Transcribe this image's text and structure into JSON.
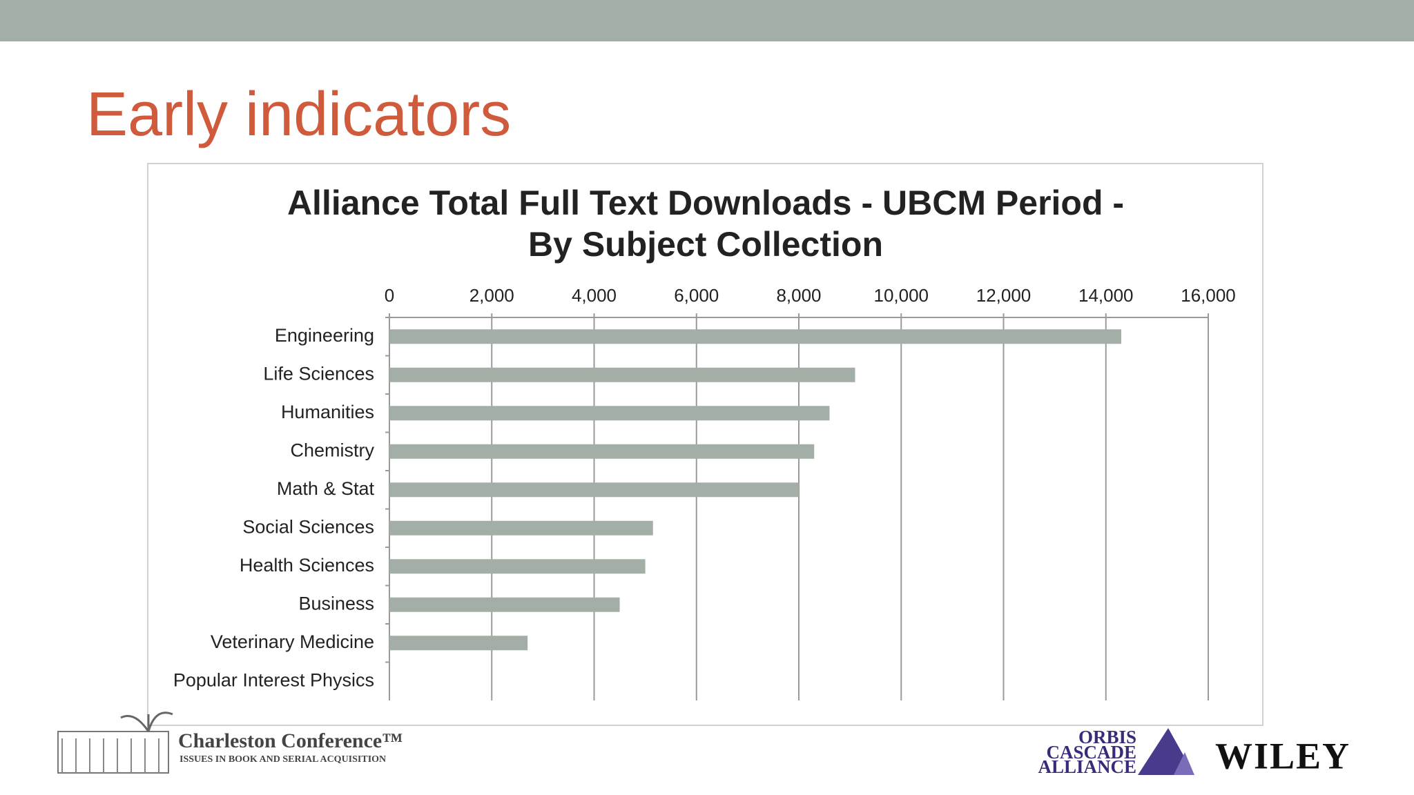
{
  "slide_title": "Early indicators",
  "chart_data": {
    "type": "bar",
    "orientation": "horizontal",
    "title": "Alliance Total Full Text Downloads - UBCM Period -",
    "subtitle": "By Subject Collection",
    "categories": [
      "Engineering",
      "Life Sciences",
      "Humanities",
      "Chemistry",
      "Math & Stat",
      "Social Sciences",
      "Health Sciences",
      "Business",
      "Veterinary Medicine",
      "Popular Interest Physics"
    ],
    "values": [
      14300,
      9100,
      8600,
      8300,
      8000,
      5150,
      5000,
      4500,
      2700,
      0
    ],
    "color": "#a3aea6",
    "xlim": [
      0,
      16000
    ],
    "xticks": [
      0,
      {
        "value": 2000,
        "label": "2,000"
      },
      {
        "value": 4000,
        "label": "4,000"
      },
      {
        "value": 6000,
        "label": "6,000"
      },
      {
        "value": 8000,
        "label": "8,000"
      },
      {
        "value": 10000,
        "label": "10,000"
      },
      {
        "value": 12000,
        "label": "12,000"
      },
      {
        "value": 14000,
        "label": "14,000"
      },
      {
        "value": 16000,
        "label": "16,000"
      }
    ],
    "grid": true
  },
  "logos": {
    "charleston": "Charleston Conference™",
    "charleston_tagline": "ISSUES IN BOOK AND SERIAL ACQUISITION",
    "orbis": [
      "ORBIS",
      "CASCADE",
      "ALLIANCE"
    ],
    "wiley": "WILEY"
  }
}
